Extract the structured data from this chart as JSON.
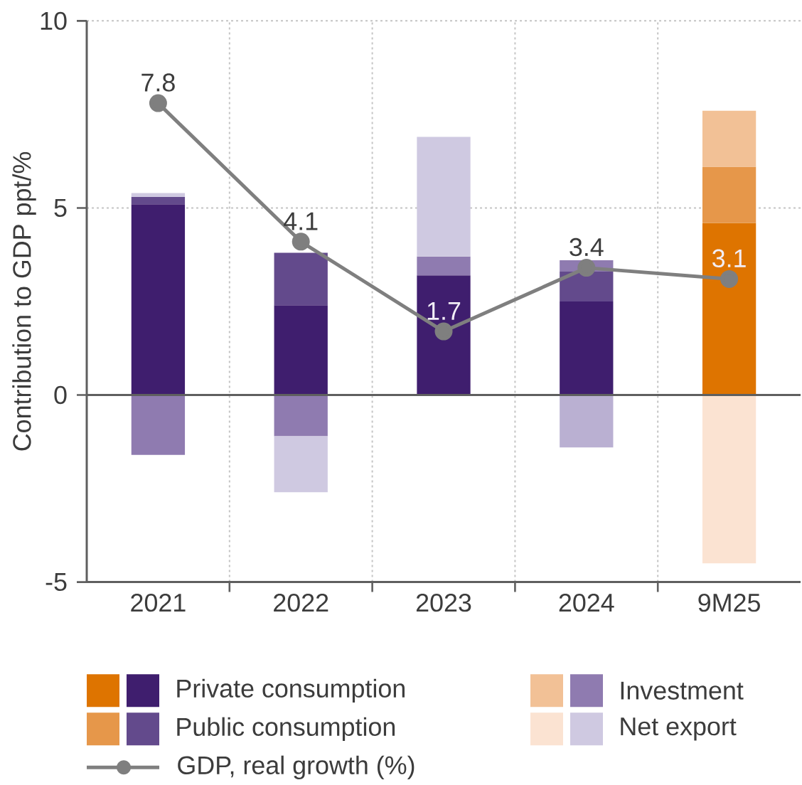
{
  "chart_data": {
    "type": "bar",
    "stacked": true,
    "ylabel": "Contribution to GDP ppt/%",
    "categories": [
      "2021",
      "2022",
      "2023",
      "2024",
      "9M25"
    ],
    "ylim": [
      -5,
      10
    ],
    "yticks": [
      -5,
      0,
      5,
      10
    ],
    "grid": true,
    "legend": "bottom",
    "series": [
      {
        "name": "Private consumption",
        "colors": [
          "#3f1e6e",
          "#3f1e6e",
          "#3f1e6e",
          "#3f1e6e",
          "#de7400"
        ],
        "values": [
          5.1,
          2.4,
          3.2,
          2.5,
          4.6
        ]
      },
      {
        "name": "Public consumption",
        "colors": [
          "#634a8c",
          "#634a8c",
          "#634a8c",
          "#634a8c",
          "#e6974a"
        ],
        "values": [
          0.2,
          1.4,
          null,
          0.8,
          1.5
        ]
      },
      {
        "name": "Investment",
        "colors": [
          "#8f7bb0",
          "#8f7bb0",
          "#8f7bb0",
          "#8f7bb0",
          "#f2c196"
        ],
        "values": [
          -1.6,
          -1.1,
          0.5,
          0.3,
          1.5
        ]
      },
      {
        "name": "Net export",
        "colors": [
          "#cfc9e1",
          "#cfc9e1",
          "#cfc9e1",
          "#bab0d2",
          "#fbe3d2"
        ],
        "values": [
          0.1,
          -1.5,
          3.2,
          -1.4,
          -4.5
        ]
      },
      {
        "name": "GDP, real growth (%)",
        "type": "line",
        "color": "#7f7f7f",
        "marker": "circle",
        "values": [
          7.8,
          4.1,
          1.7,
          3.4,
          3.1
        ],
        "value_labels": [
          "7.8",
          "4.1",
          "1.7",
          "3.4",
          "3.1"
        ]
      }
    ]
  }
}
